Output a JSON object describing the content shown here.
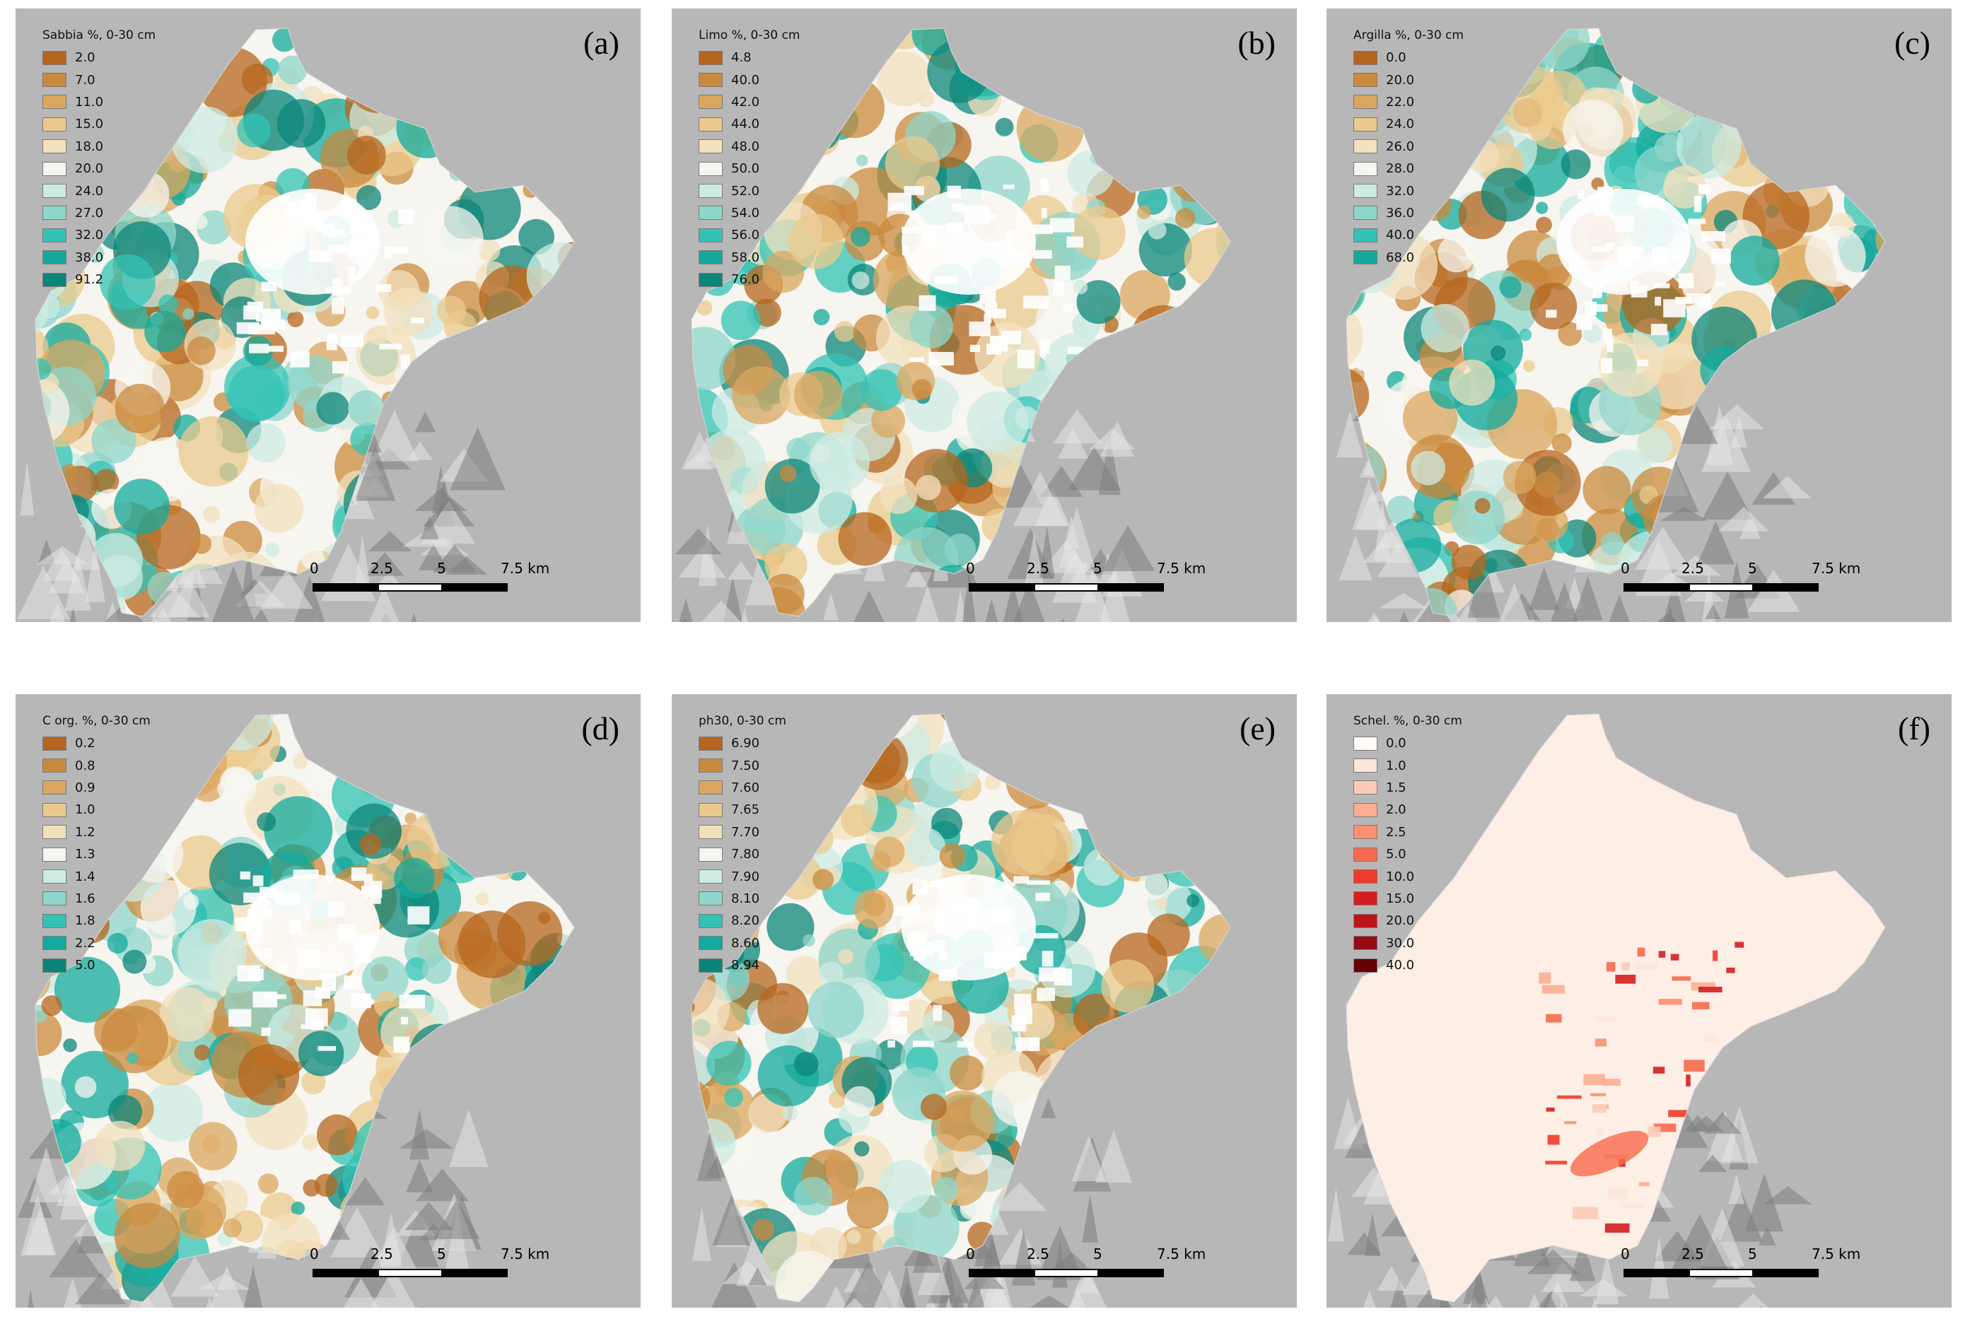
{
  "colors": {
    "background": "#b7b7b7",
    "ramp_brown_teal": [
      "#b5651d",
      "#c98a3d",
      "#dba760",
      "#ebc98e",
      "#f3e0bd",
      "#f7f5f0",
      "#cdebe3",
      "#8fd6cb",
      "#33c3b5",
      "#13a99c",
      "#0c8579"
    ],
    "ramp_reds": [
      "#fffbf7",
      "#fde6dc",
      "#fccbb7",
      "#fcae92",
      "#fb906e",
      "#f76a4e",
      "#ef3b2c",
      "#d51d20",
      "#bb1419",
      "#960b13",
      "#660006"
    ]
  },
  "scalebar": {
    "ticks": [
      "0",
      "2.5",
      "5",
      "7.5 km"
    ]
  },
  "panels": [
    {
      "label": "(a)",
      "legend_title": "Sabbia %, 0-30 cm",
      "legend_values": [
        "2.0",
        "7.0",
        "11.0",
        "15.0",
        "18.0",
        "20.0",
        "24.0",
        "27.0",
        "32.0",
        "38.0",
        "91.2"
      ],
      "ramp": "ramp_brown_teal"
    },
    {
      "label": "(b)",
      "legend_title": "Limo %, 0-30 cm",
      "legend_values": [
        "4.8",
        "40.0",
        "42.0",
        "44.0",
        "48.0",
        "50.0",
        "52.0",
        "54.0",
        "56.0",
        "58.0",
        "76.0"
      ],
      "ramp": "ramp_brown_teal"
    },
    {
      "label": "(c)",
      "legend_title": "Argilla %, 0-30 cm",
      "legend_values": [
        "0.0",
        "20.0",
        "22.0",
        "24.0",
        "26.0",
        "28.0",
        "32.0",
        "36.0",
        "40.0",
        "68.0"
      ],
      "ramp": "ramp_brown_teal"
    },
    {
      "label": "(d)",
      "legend_title": "C org. %, 0-30 cm",
      "legend_values": [
        "0.2",
        "0.8",
        "0.9",
        "1.0",
        "1.2",
        "1.3",
        "1.4",
        "1.6",
        "1.8",
        "2.2",
        "5.0"
      ],
      "ramp": "ramp_brown_teal"
    },
    {
      "label": "(e)",
      "legend_title": "ph30, 0-30 cm",
      "legend_values": [
        "6.90",
        "7.50",
        "7.60",
        "7.65",
        "7.70",
        "7.80",
        "7.90",
        "8.10",
        "8.20",
        "8.60",
        "8.94"
      ],
      "ramp": "ramp_brown_teal"
    },
    {
      "label": "(f)",
      "legend_title": "Schel. %, 0-30 cm",
      "legend_values": [
        "0.0",
        "1.0",
        "1.5",
        "2.0",
        "2.5",
        "5.0",
        "10.0",
        "15.0",
        "20.0",
        "30.0",
        "40.0"
      ],
      "ramp": "ramp_reds"
    }
  ]
}
